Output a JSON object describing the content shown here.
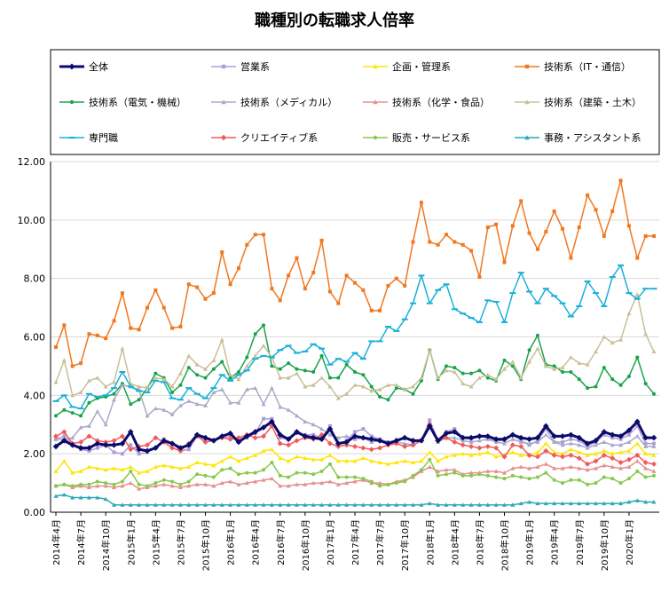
{
  "chart_data": {
    "type": "line",
    "title": "職種別の転職求人倍率",
    "xlabel": "",
    "ylabel": "",
    "ylim": [
      0,
      12
    ],
    "yticks": [
      "0.00",
      "2.00",
      "4.00",
      "6.00",
      "8.00",
      "10.00",
      "12.00"
    ],
    "grid": "horizontal",
    "legend_position": "top",
    "x_tick_labels": [
      "2014年4月",
      "2014年7月",
      "2014年10月",
      "2015年1月",
      "2015年4月",
      "2015年7月",
      "2015年10月",
      "2016年1月",
      "2016年4月",
      "2016年7月",
      "2016年10月",
      "2017年1月",
      "2017年4月",
      "2017年7月",
      "2017年10月",
      "2018年1月",
      "2018年4月",
      "2018年7月",
      "2018年10月",
      "2019年1月",
      "2019年4月",
      "2019年7月",
      "2019年10月",
      "2020年1月"
    ],
    "x_tick_step": 3,
    "n_points": 73,
    "series": [
      {
        "name": "全体",
        "color": "#0b0b6b",
        "marker": "diamond",
        "width": 3,
        "values": [
          2.25,
          2.45,
          2.3,
          2.2,
          2.2,
          2.35,
          2.3,
          2.3,
          2.35,
          2.75,
          2.15,
          2.1,
          2.2,
          2.45,
          2.35,
          2.2,
          2.3,
          2.65,
          2.55,
          2.45,
          2.6,
          2.7,
          2.4,
          2.6,
          2.75,
          2.9,
          3.1,
          2.65,
          2.5,
          2.75,
          2.6,
          2.55,
          2.5,
          2.85,
          2.35,
          2.4,
          2.6,
          2.55,
          2.5,
          2.45,
          2.35,
          2.45,
          2.55,
          2.45,
          2.45,
          2.95,
          2.45,
          2.7,
          2.75,
          2.55,
          2.55,
          2.6,
          2.6,
          2.5,
          2.5,
          2.65,
          2.55,
          2.5,
          2.55,
          2.95,
          2.6,
          2.6,
          2.65,
          2.55,
          2.35,
          2.45,
          2.75,
          2.65,
          2.6,
          2.8,
          3.1,
          2.55,
          2.55
        ]
      },
      {
        "name": "営業系",
        "color": "#b09cd8",
        "marker": "square",
        "width": 1.5,
        "values": [
          2.5,
          2.6,
          2.3,
          2.15,
          2.1,
          2.2,
          2.3,
          2.05,
          2.0,
          2.3,
          2.0,
          2.05,
          2.2,
          2.5,
          2.35,
          2.1,
          2.15,
          2.6,
          2.5,
          2.45,
          2.55,
          2.6,
          2.4,
          2.55,
          2.7,
          3.2,
          3.2,
          2.55,
          2.5,
          2.7,
          2.65,
          2.65,
          2.55,
          2.95,
          2.35,
          2.45,
          2.75,
          2.85,
          2.6,
          2.5,
          2.4,
          2.45,
          2.55,
          2.4,
          2.45,
          3.15,
          2.45,
          2.75,
          2.85,
          2.55,
          2.5,
          2.6,
          2.55,
          2.45,
          2.45,
          2.65,
          2.45,
          2.3,
          2.45,
          2.85,
          2.4,
          2.4,
          2.5,
          2.45,
          2.25,
          2.4,
          2.65,
          2.55,
          2.5,
          2.65,
          2.95,
          2.35,
          2.35
        ]
      },
      {
        "name": "企画・管理系",
        "color": "#ffe600",
        "marker": "triangle",
        "width": 1.5,
        "values": [
          1.4,
          1.75,
          1.35,
          1.4,
          1.55,
          1.5,
          1.45,
          1.5,
          1.45,
          1.55,
          1.35,
          1.4,
          1.55,
          1.6,
          1.55,
          1.5,
          1.55,
          1.7,
          1.65,
          1.6,
          1.75,
          1.9,
          1.75,
          1.85,
          1.95,
          2.1,
          2.15,
          1.85,
          1.75,
          1.9,
          1.85,
          1.8,
          1.8,
          1.95,
          1.75,
          1.75,
          1.75,
          1.85,
          1.75,
          1.7,
          1.65,
          1.7,
          1.75,
          1.7,
          1.75,
          2.05,
          1.75,
          1.9,
          1.95,
          2.0,
          1.95,
          2.0,
          2.05,
          1.9,
          1.95,
          2.05,
          1.95,
          1.95,
          2.05,
          2.35,
          2.05,
          2.0,
          2.15,
          2.05,
          1.95,
          2.0,
          2.1,
          2.0,
          2.05,
          2.1,
          2.35,
          2.0,
          1.95
        ]
      },
      {
        "name": "技術系（IT・通信）",
        "color": "#f07820",
        "marker": "square",
        "width": 1.5,
        "values": [
          5.65,
          6.4,
          5.0,
          5.1,
          6.1,
          6.05,
          5.95,
          6.55,
          7.5,
          6.3,
          6.25,
          7.0,
          7.6,
          7.0,
          6.3,
          6.35,
          7.8,
          7.7,
          7.3,
          7.5,
          8.9,
          7.8,
          8.35,
          9.15,
          9.5,
          9.5,
          7.65,
          7.25,
          8.1,
          8.7,
          7.65,
          8.2,
          9.3,
          7.55,
          7.15,
          8.1,
          7.85,
          7.6,
          6.9,
          6.9,
          7.75,
          8.0,
          7.75,
          9.25,
          10.6,
          9.25,
          9.15,
          9.5,
          9.25,
          9.15,
          8.95,
          8.05,
          9.75,
          9.85,
          8.55,
          9.8,
          10.65,
          9.55,
          9.0,
          9.6,
          10.3,
          9.7,
          8.7,
          9.75,
          10.85,
          10.35,
          9.45,
          10.3,
          11.35,
          9.8,
          8.7,
          9.45,
          9.45
        ]
      },
      {
        "name": "技術系（電気・機械）",
        "color": "#1aa34a",
        "marker": "circle",
        "width": 1.5,
        "values": [
          3.3,
          3.5,
          3.4,
          3.3,
          3.75,
          3.9,
          3.95,
          4.05,
          4.4,
          3.7,
          3.85,
          4.25,
          4.75,
          4.6,
          4.1,
          4.35,
          4.95,
          4.7,
          4.6,
          4.9,
          5.15,
          4.6,
          4.8,
          5.3,
          6.1,
          6.4,
          5.0,
          4.9,
          5.1,
          4.9,
          4.85,
          4.8,
          5.35,
          4.6,
          4.6,
          5.05,
          4.8,
          4.7,
          4.3,
          3.95,
          3.85,
          4.25,
          4.2,
          4.05,
          4.5,
          5.55,
          4.55,
          5.0,
          4.95,
          4.75,
          4.75,
          4.85,
          4.6,
          4.5,
          5.2,
          5.0,
          4.55,
          5.55,
          6.05,
          5.05,
          5.0,
          4.8,
          4.8,
          4.55,
          4.25,
          4.3,
          4.95,
          4.55,
          4.35,
          4.65,
          5.3,
          4.4,
          4.05
        ]
      },
      {
        "name": "技術系（メディカル）",
        "color": "#a9a9c9",
        "marker": "triangle",
        "width": 1.5,
        "values": [
          2.5,
          2.5,
          2.55,
          2.9,
          2.95,
          3.45,
          3.0,
          3.85,
          4.35,
          4.3,
          4.2,
          3.3,
          3.55,
          3.5,
          3.35,
          3.65,
          3.8,
          3.7,
          3.65,
          4.1,
          4.2,
          3.75,
          3.75,
          4.2,
          4.25,
          3.7,
          4.25,
          3.6,
          3.5,
          3.3,
          3.1,
          3.0,
          2.85,
          2.65,
          2.55,
          2.6,
          2.5,
          2.55,
          2.4,
          2.45,
          2.35,
          2.4,
          2.35,
          2.3,
          2.45,
          2.9,
          2.4,
          2.55,
          2.55,
          2.45,
          2.4,
          2.45,
          2.5,
          2.4,
          2.35,
          2.5,
          2.4,
          2.35,
          2.4,
          2.65,
          2.4,
          2.3,
          2.35,
          2.3,
          2.2,
          2.3,
          2.4,
          2.3,
          2.3,
          2.4,
          2.6,
          2.25,
          2.25
        ]
      },
      {
        "name": "技術系（化学・食品）",
        "color": "#e69090",
        "marker": "triangle",
        "width": 1.5,
        "values": [
          0.9,
          0.95,
          0.85,
          0.9,
          0.85,
          0.9,
          0.9,
          0.85,
          0.9,
          1.0,
          0.8,
          0.85,
          0.9,
          0.95,
          0.9,
          0.85,
          0.9,
          0.95,
          0.95,
          0.9,
          1.0,
          1.05,
          0.95,
          1.0,
          1.05,
          1.1,
          1.15,
          0.9,
          0.9,
          0.95,
          0.95,
          1.0,
          1.0,
          1.05,
          0.95,
          1.0,
          1.05,
          1.1,
          1.0,
          1.0,
          0.95,
          1.05,
          1.1,
          1.2,
          1.4,
          1.55,
          1.4,
          1.45,
          1.45,
          1.3,
          1.35,
          1.35,
          1.4,
          1.4,
          1.35,
          1.5,
          1.55,
          1.5,
          1.55,
          1.65,
          1.5,
          1.5,
          1.55,
          1.5,
          1.45,
          1.5,
          1.6,
          1.55,
          1.5,
          1.55,
          1.75,
          1.5,
          1.4
        ]
      },
      {
        "name": "技術系（建築・土木）",
        "color": "#c8c098",
        "marker": "triangle",
        "width": 1.5,
        "values": [
          4.45,
          5.2,
          4.0,
          4.1,
          4.5,
          4.6,
          4.3,
          4.45,
          5.6,
          4.4,
          4.3,
          4.25,
          4.6,
          4.55,
          4.3,
          4.75,
          5.35,
          5.05,
          4.9,
          5.2,
          5.9,
          4.7,
          4.55,
          5.0,
          5.35,
          5.7,
          5.3,
          4.6,
          4.6,
          4.75,
          4.3,
          4.35,
          4.6,
          4.3,
          3.9,
          4.05,
          4.35,
          4.3,
          4.15,
          4.2,
          4.35,
          4.35,
          4.2,
          4.3,
          4.6,
          5.55,
          4.6,
          4.85,
          4.8,
          4.4,
          4.3,
          4.6,
          4.7,
          4.55,
          4.9,
          5.15,
          4.6,
          5.15,
          5.6,
          5.0,
          4.9,
          4.95,
          5.3,
          5.1,
          5.05,
          5.5,
          6.0,
          5.8,
          5.9,
          6.8,
          7.45,
          6.1,
          5.5
        ]
      },
      {
        "name": "専門職",
        "color": "#1ab0d8",
        "marker": "dash",
        "width": 1.5,
        "values": [
          3.8,
          4.0,
          3.6,
          3.55,
          4.05,
          3.95,
          4.0,
          4.25,
          4.8,
          4.3,
          4.15,
          4.1,
          4.5,
          4.45,
          3.9,
          3.85,
          4.25,
          4.05,
          3.9,
          4.25,
          4.7,
          4.5,
          4.7,
          4.85,
          5.25,
          5.35,
          5.3,
          5.55,
          5.7,
          5.45,
          5.5,
          5.75,
          5.6,
          5.05,
          5.25,
          5.15,
          5.45,
          5.25,
          5.85,
          5.85,
          6.35,
          6.2,
          6.6,
          7.15,
          8.1,
          7.15,
          7.6,
          7.8,
          6.95,
          6.8,
          6.65,
          6.5,
          7.25,
          7.2,
          6.5,
          7.5,
          8.2,
          7.55,
          7.15,
          7.65,
          7.4,
          7.15,
          6.7,
          7.05,
          7.9,
          7.5,
          7.05,
          8.05,
          8.45,
          7.5,
          7.3,
          7.65,
          7.65
        ]
      },
      {
        "name": "クリエイティブ系",
        "color": "#f05a5a",
        "marker": "diamond",
        "width": 1.5,
        "values": [
          2.6,
          2.75,
          2.35,
          2.4,
          2.6,
          2.45,
          2.4,
          2.45,
          2.6,
          2.15,
          2.25,
          2.3,
          2.55,
          2.4,
          2.2,
          2.1,
          2.35,
          2.6,
          2.4,
          2.45,
          2.55,
          2.5,
          2.55,
          2.65,
          2.55,
          2.6,
          2.95,
          2.35,
          2.3,
          2.45,
          2.55,
          2.5,
          2.65,
          2.35,
          2.25,
          2.3,
          2.25,
          2.2,
          2.15,
          2.2,
          2.3,
          2.35,
          2.25,
          2.3,
          2.45,
          3.0,
          2.45,
          2.55,
          2.4,
          2.3,
          2.25,
          2.2,
          2.25,
          2.2,
          1.9,
          2.3,
          2.25,
          1.95,
          1.9,
          2.1,
          1.95,
          1.9,
          1.95,
          1.85,
          1.65,
          1.75,
          1.95,
          1.85,
          1.7,
          1.8,
          1.95,
          1.7,
          1.65
        ]
      },
      {
        "name": "販売・サービス系",
        "color": "#88c84a",
        "marker": "circle",
        "width": 1.5,
        "values": [
          0.9,
          0.95,
          0.9,
          0.95,
          0.95,
          1.05,
          1.0,
          0.95,
          1.05,
          1.4,
          0.95,
          0.9,
          1.0,
          1.1,
          1.05,
          0.95,
          1.05,
          1.3,
          1.25,
          1.2,
          1.45,
          1.5,
          1.3,
          1.35,
          1.35,
          1.45,
          1.7,
          1.25,
          1.2,
          1.35,
          1.35,
          1.3,
          1.4,
          1.65,
          1.2,
          1.2,
          1.2,
          1.15,
          1.05,
          0.9,
          0.95,
          1.0,
          1.05,
          1.25,
          1.45,
          1.8,
          1.25,
          1.3,
          1.35,
          1.25,
          1.25,
          1.3,
          1.25,
          1.2,
          1.15,
          1.25,
          1.2,
          1.15,
          1.2,
          1.35,
          1.1,
          1.0,
          1.1,
          1.1,
          0.95,
          1.0,
          1.2,
          1.15,
          1.0,
          1.15,
          1.4,
          1.2,
          1.25
        ]
      },
      {
        "name": "事務・アシスタント系",
        "color": "#2ca8b8",
        "marker": "triangle",
        "width": 1.5,
        "values": [
          0.55,
          0.6,
          0.5,
          0.5,
          0.5,
          0.5,
          0.45,
          0.25,
          0.25,
          0.25,
          0.25,
          0.25,
          0.25,
          0.25,
          0.25,
          0.25,
          0.25,
          0.25,
          0.25,
          0.25,
          0.25,
          0.25,
          0.25,
          0.25,
          0.25,
          0.25,
          0.25,
          0.25,
          0.25,
          0.25,
          0.25,
          0.25,
          0.25,
          0.25,
          0.25,
          0.25,
          0.25,
          0.25,
          0.25,
          0.25,
          0.25,
          0.25,
          0.25,
          0.25,
          0.25,
          0.3,
          0.25,
          0.25,
          0.25,
          0.25,
          0.25,
          0.25,
          0.25,
          0.25,
          0.25,
          0.25,
          0.3,
          0.35,
          0.3,
          0.3,
          0.3,
          0.3,
          0.3,
          0.3,
          0.3,
          0.3,
          0.3,
          0.3,
          0.3,
          0.35,
          0.4,
          0.35,
          0.35
        ]
      }
    ]
  }
}
